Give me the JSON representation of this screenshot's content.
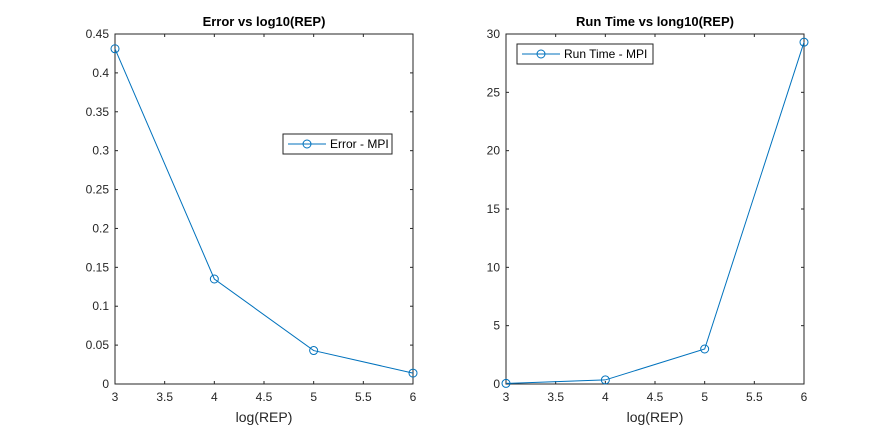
{
  "chart_data": [
    {
      "type": "line",
      "title": "Error vs log10(REP)",
      "xlabel": "log(REP)",
      "ylabel": "",
      "xlim": [
        3,
        6
      ],
      "ylim": [
        0,
        0.45
      ],
      "xticks": [
        "3",
        "3.5",
        "4",
        "4.5",
        "5",
        "5.5",
        "6"
      ],
      "yticks": [
        "0",
        "0.05",
        "0.1",
        "0.15",
        "0.2",
        "0.25",
        "0.3",
        "0.35",
        "0.4",
        "0.45"
      ],
      "grid": false,
      "legend_position": "center-right",
      "series": [
        {
          "name": "Error - MPI",
          "color": "#0072BD",
          "marker": "circle",
          "x": [
            3,
            4,
            5,
            6
          ],
          "y": [
            0.431,
            0.135,
            0.043,
            0.014
          ]
        }
      ]
    },
    {
      "type": "line",
      "title": "Run Time vs long10(REP)",
      "xlabel": "log(REP)",
      "ylabel": "",
      "xlim": [
        3,
        6
      ],
      "ylim": [
        0,
        30
      ],
      "xticks": [
        "3",
        "3.5",
        "4",
        "4.5",
        "5",
        "5.5",
        "6"
      ],
      "yticks": [
        "0",
        "5",
        "10",
        "15",
        "20",
        "25",
        "30"
      ],
      "grid": false,
      "legend_position": "top-left",
      "series": [
        {
          "name": "Run Time - MPI",
          "color": "#0072BD",
          "marker": "circle",
          "x": [
            3,
            4,
            5,
            6
          ],
          "y": [
            0.05,
            0.35,
            3.0,
            29.3
          ]
        }
      ]
    }
  ]
}
